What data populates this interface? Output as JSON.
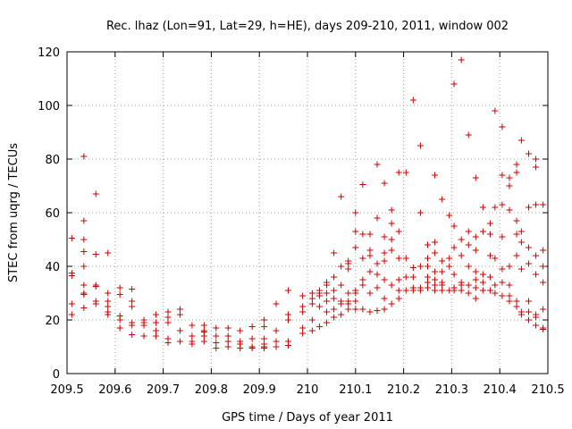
{
  "chart_data": {
    "type": "scatter",
    "title": "Rec. lhaz (Lon=91, Lat=29, h=HE), days 209-210, 2011, window 002",
    "xlabel": "GPS time / Days of year 2011",
    "ylabel": "STEC from uqrg / TECUs",
    "xlim": [
      209.5,
      210.5
    ],
    "ylim": [
      0,
      120
    ],
    "xticks": [
      209.5,
      209.6,
      209.7,
      209.8,
      209.9,
      210.0,
      210.1,
      210.2,
      210.3,
      210.4,
      210.5
    ],
    "xtick_labels": [
      "209.5",
      "209.6",
      "209.7",
      "209.8",
      "209.9",
      "210",
      "210.1",
      "210.2",
      "210.3",
      "210.4",
      "210.5"
    ],
    "yticks": [
      0,
      20,
      40,
      60,
      80,
      100,
      120
    ],
    "ytick_labels": [
      "0",
      "20",
      "40",
      "60",
      "80",
      "100",
      "120"
    ],
    "grid": true,
    "marker": "plus",
    "color": "#cc0000",
    "points": [
      [
        209.51,
        50.5
      ],
      [
        209.51,
        37.5
      ],
      [
        209.51,
        36.5
      ],
      [
        209.51,
        26
      ],
      [
        209.51,
        22
      ],
      [
        209.535,
        81
      ],
      [
        209.535,
        57
      ],
      [
        209.535,
        50
      ],
      [
        209.535,
        45.5
      ],
      [
        209.535,
        40
      ],
      [
        209.535,
        33
      ],
      [
        209.535,
        30
      ],
      [
        209.535,
        29.5
      ],
      [
        209.535,
        24.5
      ],
      [
        209.56,
        67
      ],
      [
        209.56,
        44.5
      ],
      [
        209.56,
        33
      ],
      [
        209.56,
        32.5
      ],
      [
        209.56,
        27
      ],
      [
        209.56,
        26
      ],
      [
        209.585,
        45
      ],
      [
        209.585,
        30
      ],
      [
        209.585,
        27
      ],
      [
        209.585,
        25
      ],
      [
        209.585,
        23
      ],
      [
        209.585,
        22
      ],
      [
        209.61,
        32
      ],
      [
        209.61,
        29.5
      ],
      [
        209.61,
        21.5
      ],
      [
        209.61,
        20
      ],
      [
        209.61,
        17
      ],
      [
        209.635,
        31.5
      ],
      [
        209.635,
        27
      ],
      [
        209.635,
        25
      ],
      [
        209.635,
        19
      ],
      [
        209.635,
        18
      ],
      [
        209.635,
        14.5
      ],
      [
        209.66,
        20
      ],
      [
        209.66,
        19
      ],
      [
        209.66,
        18
      ],
      [
        209.66,
        14
      ],
      [
        209.685,
        22
      ],
      [
        209.685,
        19
      ],
      [
        209.685,
        16
      ],
      [
        209.685,
        14
      ],
      [
        209.71,
        23
      ],
      [
        209.71,
        21
      ],
      [
        209.71,
        19
      ],
      [
        209.71,
        13
      ],
      [
        209.71,
        11.5
      ],
      [
        209.735,
        24
      ],
      [
        209.735,
        22
      ],
      [
        209.735,
        16
      ],
      [
        209.735,
        12
      ],
      [
        209.76,
        18
      ],
      [
        209.76,
        14
      ],
      [
        209.76,
        12
      ],
      [
        209.76,
        11
      ],
      [
        209.785,
        18
      ],
      [
        209.785,
        16
      ],
      [
        209.785,
        15.5
      ],
      [
        209.785,
        14
      ],
      [
        209.785,
        12
      ],
      [
        209.81,
        17
      ],
      [
        209.81,
        14
      ],
      [
        209.81,
        11.5
      ],
      [
        209.81,
        9.5
      ],
      [
        209.835,
        17
      ],
      [
        209.835,
        14
      ],
      [
        209.835,
        12
      ],
      [
        209.835,
        10
      ],
      [
        209.86,
        16
      ],
      [
        209.86,
        12
      ],
      [
        209.86,
        11
      ],
      [
        209.86,
        9.5
      ],
      [
        209.885,
        17.5
      ],
      [
        209.885,
        13
      ],
      [
        209.885,
        10
      ],
      [
        209.885,
        9.5
      ],
      [
        209.91,
        20
      ],
      [
        209.91,
        17.5
      ],
      [
        209.91,
        13
      ],
      [
        209.91,
        11
      ],
      [
        209.91,
        10
      ],
      [
        209.91,
        9.5
      ],
      [
        209.935,
        26
      ],
      [
        209.935,
        16
      ],
      [
        209.935,
        12
      ],
      [
        209.935,
        10
      ],
      [
        209.96,
        31
      ],
      [
        209.96,
        22
      ],
      [
        209.96,
        20
      ],
      [
        209.96,
        12
      ],
      [
        209.96,
        10.5
      ],
      [
        209.99,
        29
      ],
      [
        209.99,
        25
      ],
      [
        209.99,
        23
      ],
      [
        209.99,
        17
      ],
      [
        209.99,
        15
      ],
      [
        210.01,
        30
      ],
      [
        210.01,
        28
      ],
      [
        210.01,
        26
      ],
      [
        210.01,
        20
      ],
      [
        210.01,
        16
      ],
      [
        210.025,
        31
      ],
      [
        210.025,
        30
      ],
      [
        210.025,
        29
      ],
      [
        210.025,
        25
      ],
      [
        210.025,
        17.5
      ],
      [
        210.04,
        34
      ],
      [
        210.04,
        33
      ],
      [
        210.04,
        30
      ],
      [
        210.04,
        27
      ],
      [
        210.04,
        23
      ],
      [
        210.04,
        19
      ],
      [
        210.055,
        45
      ],
      [
        210.055,
        36
      ],
      [
        210.055,
        31
      ],
      [
        210.055,
        28
      ],
      [
        210.055,
        24
      ],
      [
        210.055,
        21
      ],
      [
        210.07,
        66
      ],
      [
        210.07,
        40
      ],
      [
        210.07,
        33
      ],
      [
        210.07,
        27
      ],
      [
        210.07,
        26
      ],
      [
        210.07,
        22
      ],
      [
        210.085,
        42
      ],
      [
        210.085,
        41
      ],
      [
        210.085,
        39
      ],
      [
        210.085,
        30
      ],
      [
        210.085,
        27
      ],
      [
        210.085,
        26
      ],
      [
        210.085,
        24
      ],
      [
        210.1,
        60
      ],
      [
        210.1,
        53
      ],
      [
        210.1,
        47
      ],
      [
        210.1,
        31
      ],
      [
        210.1,
        30
      ],
      [
        210.1,
        27
      ],
      [
        210.1,
        24
      ],
      [
        210.115,
        70.5
      ],
      [
        210.115,
        52
      ],
      [
        210.115,
        43
      ],
      [
        210.115,
        35
      ],
      [
        210.115,
        33
      ],
      [
        210.115,
        24
      ],
      [
        210.13,
        52
      ],
      [
        210.13,
        46
      ],
      [
        210.13,
        44
      ],
      [
        210.13,
        38
      ],
      [
        210.13,
        30
      ],
      [
        210.13,
        23
      ],
      [
        210.145,
        78
      ],
      [
        210.145,
        58
      ],
      [
        210.145,
        41
      ],
      [
        210.145,
        37
      ],
      [
        210.145,
        32
      ],
      [
        210.145,
        23.5
      ],
      [
        210.16,
        71
      ],
      [
        210.16,
        51
      ],
      [
        210.16,
        45
      ],
      [
        210.16,
        42
      ],
      [
        210.16,
        35
      ],
      [
        210.16,
        28
      ],
      [
        210.16,
        24
      ],
      [
        210.175,
        61
      ],
      [
        210.175,
        56
      ],
      [
        210.175,
        50
      ],
      [
        210.175,
        46
      ],
      [
        210.175,
        33
      ],
      [
        210.175,
        26
      ],
      [
        210.19,
        75
      ],
      [
        210.19,
        53
      ],
      [
        210.19,
        43
      ],
      [
        210.19,
        35
      ],
      [
        210.19,
        31
      ],
      [
        210.19,
        28
      ],
      [
        210.205,
        75
      ],
      [
        210.205,
        43
      ],
      [
        210.205,
        36
      ],
      [
        210.205,
        31
      ],
      [
        210.22,
        102
      ],
      [
        210.22,
        39.5
      ],
      [
        210.22,
        36
      ],
      [
        210.22,
        32
      ],
      [
        210.22,
        31
      ],
      [
        210.235,
        85
      ],
      [
        210.235,
        60
      ],
      [
        210.235,
        40
      ],
      [
        210.235,
        32
      ],
      [
        210.235,
        31
      ],
      [
        210.25,
        48
      ],
      [
        210.25,
        43
      ],
      [
        210.25,
        40
      ],
      [
        210.25,
        36
      ],
      [
        210.25,
        34
      ],
      [
        210.25,
        32
      ],
      [
        210.265,
        74
      ],
      [
        210.265,
        49
      ],
      [
        210.265,
        45
      ],
      [
        210.265,
        38
      ],
      [
        210.265,
        35
      ],
      [
        210.265,
        33
      ],
      [
        210.265,
        31
      ],
      [
        210.28,
        65
      ],
      [
        210.28,
        42
      ],
      [
        210.28,
        38
      ],
      [
        210.28,
        34
      ],
      [
        210.28,
        33
      ],
      [
        210.28,
        31
      ],
      [
        210.295,
        59
      ],
      [
        210.295,
        43
      ],
      [
        210.295,
        40
      ],
      [
        210.295,
        31
      ],
      [
        210.305,
        108
      ],
      [
        210.305,
        55
      ],
      [
        210.305,
        47
      ],
      [
        210.305,
        37
      ],
      [
        210.305,
        32
      ],
      [
        210.305,
        31
      ],
      [
        210.32,
        117
      ],
      [
        210.32,
        50
      ],
      [
        210.32,
        44
      ],
      [
        210.32,
        34
      ],
      [
        210.32,
        33
      ],
      [
        210.32,
        31
      ],
      [
        210.335,
        89
      ],
      [
        210.335,
        53
      ],
      [
        210.335,
        48
      ],
      [
        210.335,
        40
      ],
      [
        210.335,
        33
      ],
      [
        210.335,
        30
      ],
      [
        210.35,
        73
      ],
      [
        210.35,
        51
      ],
      [
        210.35,
        46
      ],
      [
        210.35,
        38
      ],
      [
        210.35,
        35
      ],
      [
        210.35,
        32
      ],
      [
        210.35,
        28
      ],
      [
        210.365,
        62
      ],
      [
        210.365,
        53
      ],
      [
        210.365,
        37
      ],
      [
        210.365,
        34
      ],
      [
        210.365,
        31
      ],
      [
        210.38,
        56
      ],
      [
        210.38,
        52
      ],
      [
        210.38,
        44
      ],
      [
        210.38,
        36
      ],
      [
        210.38,
        31
      ],
      [
        210.39,
        98
      ],
      [
        210.39,
        62
      ],
      [
        210.39,
        43
      ],
      [
        210.39,
        33
      ],
      [
        210.39,
        30
      ],
      [
        210.405,
        92
      ],
      [
        210.405,
        74
      ],
      [
        210.405,
        63
      ],
      [
        210.405,
        51
      ],
      [
        210.405,
        39
      ],
      [
        210.405,
        34
      ],
      [
        210.405,
        29
      ],
      [
        210.42,
        73
      ],
      [
        210.42,
        70
      ],
      [
        210.42,
        61
      ],
      [
        210.42,
        40
      ],
      [
        210.42,
        33
      ],
      [
        210.42,
        29
      ],
      [
        210.42,
        27
      ],
      [
        210.435,
        78
      ],
      [
        210.435,
        75
      ],
      [
        210.435,
        57
      ],
      [
        210.435,
        52
      ],
      [
        210.435,
        44
      ],
      [
        210.435,
        27
      ],
      [
        210.435,
        25
      ],
      [
        210.445,
        87
      ],
      [
        210.445,
        53
      ],
      [
        210.445,
        49
      ],
      [
        210.445,
        39
      ],
      [
        210.445,
        23
      ],
      [
        210.445,
        22
      ],
      [
        210.46,
        82
      ],
      [
        210.46,
        62
      ],
      [
        210.46,
        47
      ],
      [
        210.46,
        41
      ],
      [
        210.46,
        27
      ],
      [
        210.46,
        23
      ],
      [
        210.46,
        20
      ],
      [
        210.475,
        80
      ],
      [
        210.475,
        77
      ],
      [
        210.475,
        63
      ],
      [
        210.475,
        44
      ],
      [
        210.475,
        37
      ],
      [
        210.475,
        22
      ],
      [
        210.475,
        21
      ],
      [
        210.475,
        18
      ],
      [
        210.49,
        63
      ],
      [
        210.49,
        46
      ],
      [
        210.49,
        40
      ],
      [
        210.49,
        34
      ],
      [
        210.49,
        24
      ],
      [
        210.49,
        17
      ],
      [
        210.49,
        16.5
      ]
    ]
  }
}
